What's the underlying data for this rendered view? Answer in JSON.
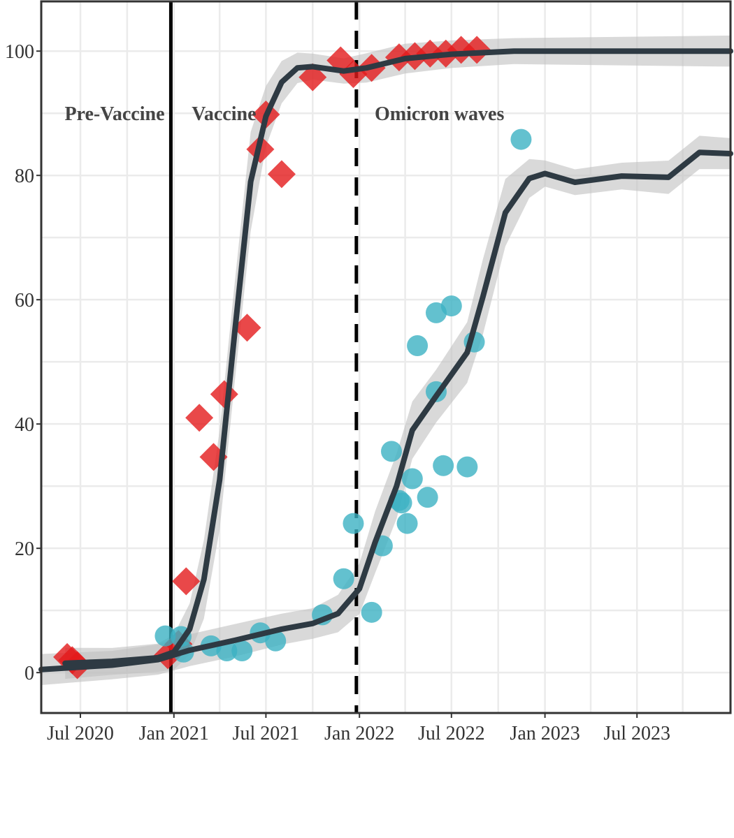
{
  "chart_data": {
    "type": "scatter",
    "title": "",
    "xlabel": "",
    "ylabel": "",
    "x_unit": "date",
    "xlim": [
      "2020-04-15",
      "2024-01-01"
    ],
    "ylim": [
      -6.5,
      108
    ],
    "grid": true,
    "legend": "none",
    "x_ticks": [
      {
        "date": "2020-07-01",
        "label": "Jul 2020"
      },
      {
        "date": "2021-01-01",
        "label": "Jan 2021"
      },
      {
        "date": "2021-07-01",
        "label": "Jul 2021"
      },
      {
        "date": "2022-01-01",
        "label": "Jan 2022"
      },
      {
        "date": "2022-07-01",
        "label": "Jul 2022"
      },
      {
        "date": "2023-01-01",
        "label": "Jan 2023"
      },
      {
        "date": "2023-07-01",
        "label": "Jul 2023"
      }
    ],
    "y_ticks": [
      0,
      20,
      40,
      60,
      80,
      100
    ],
    "phases": [
      {
        "label": "Pre-Vaccine",
        "x": "2020-05-31",
        "y": 90
      },
      {
        "label": "Vaccine",
        "x": "2021-02-05",
        "y": 90
      },
      {
        "label": "Omicron waves",
        "x": "2022-01-31",
        "y": 90
      }
    ],
    "reference_lines": [
      {
        "x": "2020-12-26",
        "style": "solid"
      },
      {
        "x": "2021-12-26",
        "style": "dashed"
      }
    ],
    "series": [
      {
        "marker": "diamond",
        "color": "#e41a1c",
        "points": [
          {
            "x": "2020-06-05",
            "y": 2.5
          },
          {
            "x": "2020-06-15",
            "y": 2.0
          },
          {
            "x": "2020-06-25",
            "y": 1.2
          },
          {
            "x": "2020-12-20",
            "y": 2.8
          },
          {
            "x": "2021-01-10",
            "y": 4.6
          },
          {
            "x": "2021-01-25",
            "y": 14.7
          },
          {
            "x": "2021-02-20",
            "y": 41.0
          },
          {
            "x": "2021-03-20",
            "y": 34.7
          },
          {
            "x": "2021-04-10",
            "y": 44.8
          },
          {
            "x": "2021-05-25",
            "y": 55.5
          },
          {
            "x": "2021-06-20",
            "y": 84.2
          },
          {
            "x": "2021-07-01",
            "y": 89.8
          },
          {
            "x": "2021-08-01",
            "y": 80.2
          },
          {
            "x": "2021-10-01",
            "y": 95.8
          },
          {
            "x": "2021-11-25",
            "y": 98.5
          },
          {
            "x": "2021-12-20",
            "y": 96.3
          },
          {
            "x": "2022-01-25",
            "y": 97.3
          },
          {
            "x": "2022-03-20",
            "y": 99.0
          },
          {
            "x": "2022-04-20",
            "y": 99.2
          },
          {
            "x": "2022-05-20",
            "y": 99.6
          },
          {
            "x": "2022-06-20",
            "y": 99.6
          },
          {
            "x": "2022-07-20",
            "y": 100.2
          },
          {
            "x": "2022-08-20",
            "y": 100.2
          }
        ],
        "trend": [
          {
            "x": "2020-06-01",
            "y": 1.5
          },
          {
            "x": "2020-09-01",
            "y": 1.8
          },
          {
            "x": "2020-12-01",
            "y": 2.4
          },
          {
            "x": "2021-01-01",
            "y": 3.3
          },
          {
            "x": "2021-02-01",
            "y": 7.0
          },
          {
            "x": "2021-03-01",
            "y": 15.0
          },
          {
            "x": "2021-04-01",
            "y": 31.0
          },
          {
            "x": "2021-05-01",
            "y": 55.0
          },
          {
            "x": "2021-06-01",
            "y": 79.0
          },
          {
            "x": "2021-07-01",
            "y": 89.5
          },
          {
            "x": "2021-08-01",
            "y": 95.0
          },
          {
            "x": "2021-09-01",
            "y": 97.3
          },
          {
            "x": "2021-10-01",
            "y": 97.5
          },
          {
            "x": "2021-12-01",
            "y": 96.8
          },
          {
            "x": "2022-01-15",
            "y": 97.3
          },
          {
            "x": "2022-04-01",
            "y": 98.8
          },
          {
            "x": "2022-07-01",
            "y": 99.5
          },
          {
            "x": "2022-11-01",
            "y": 100.0
          },
          {
            "x": "2024-01-01",
            "y": 100.0
          }
        ]
      },
      {
        "marker": "circle",
        "color": "#3cb1c3",
        "points": [
          {
            "x": "2020-12-15",
            "y": 5.9
          },
          {
            "x": "2021-01-15",
            "y": 5.8
          },
          {
            "x": "2021-01-20",
            "y": 3.3
          },
          {
            "x": "2021-03-15",
            "y": 4.3
          },
          {
            "x": "2021-04-15",
            "y": 3.5
          },
          {
            "x": "2021-05-15",
            "y": 3.5
          },
          {
            "x": "2021-06-20",
            "y": 6.4
          },
          {
            "x": "2021-07-20",
            "y": 5.1
          },
          {
            "x": "2021-10-20",
            "y": 9.3
          },
          {
            "x": "2021-12-01",
            "y": 15.1
          },
          {
            "x": "2021-12-20",
            "y": 24.0
          },
          {
            "x": "2022-01-25",
            "y": 9.7
          },
          {
            "x": "2022-02-15",
            "y": 20.4
          },
          {
            "x": "2022-03-05",
            "y": 35.6
          },
          {
            "x": "2022-03-20",
            "y": 27.7
          },
          {
            "x": "2022-03-25",
            "y": 27.3
          },
          {
            "x": "2022-04-05",
            "y": 24.0
          },
          {
            "x": "2022-04-15",
            "y": 31.2
          },
          {
            "x": "2022-04-25",
            "y": 52.6
          },
          {
            "x": "2022-05-15",
            "y": 28.2
          },
          {
            "x": "2022-06-01",
            "y": 57.9
          },
          {
            "x": "2022-06-01",
            "y": 45.2
          },
          {
            "x": "2022-06-15",
            "y": 33.3
          },
          {
            "x": "2022-07-01",
            "y": 59.0
          },
          {
            "x": "2022-08-01",
            "y": 33.1
          },
          {
            "x": "2022-08-15",
            "y": 53.2
          },
          {
            "x": "2022-11-15",
            "y": 85.8
          }
        ],
        "trend": [
          {
            "x": "2020-04-15",
            "y": 0.5
          },
          {
            "x": "2020-09-01",
            "y": 1.2
          },
          {
            "x": "2020-12-01",
            "y": 2.1
          },
          {
            "x": "2021-02-01",
            "y": 3.6
          },
          {
            "x": "2021-05-01",
            "y": 5.2
          },
          {
            "x": "2021-08-01",
            "y": 7.0
          },
          {
            "x": "2021-10-01",
            "y": 7.9
          },
          {
            "x": "2021-11-20",
            "y": 9.5
          },
          {
            "x": "2022-01-01",
            "y": 13.5
          },
          {
            "x": "2022-02-01",
            "y": 21.0
          },
          {
            "x": "2022-03-15",
            "y": 30.0
          },
          {
            "x": "2022-04-15",
            "y": 39.0
          },
          {
            "x": "2022-06-01",
            "y": 44.5
          },
          {
            "x": "2022-08-01",
            "y": 51.5
          },
          {
            "x": "2022-09-01",
            "y": 60.5
          },
          {
            "x": "2022-10-15",
            "y": 74.0
          },
          {
            "x": "2022-12-01",
            "y": 79.5
          },
          {
            "x": "2023-01-01",
            "y": 80.3
          },
          {
            "x": "2023-03-01",
            "y": 78.9
          },
          {
            "x": "2023-06-01",
            "y": 79.9
          },
          {
            "x": "2023-09-01",
            "y": 79.7
          },
          {
            "x": "2023-11-01",
            "y": 83.7
          },
          {
            "x": "2024-01-01",
            "y": 83.5
          }
        ]
      }
    ]
  }
}
